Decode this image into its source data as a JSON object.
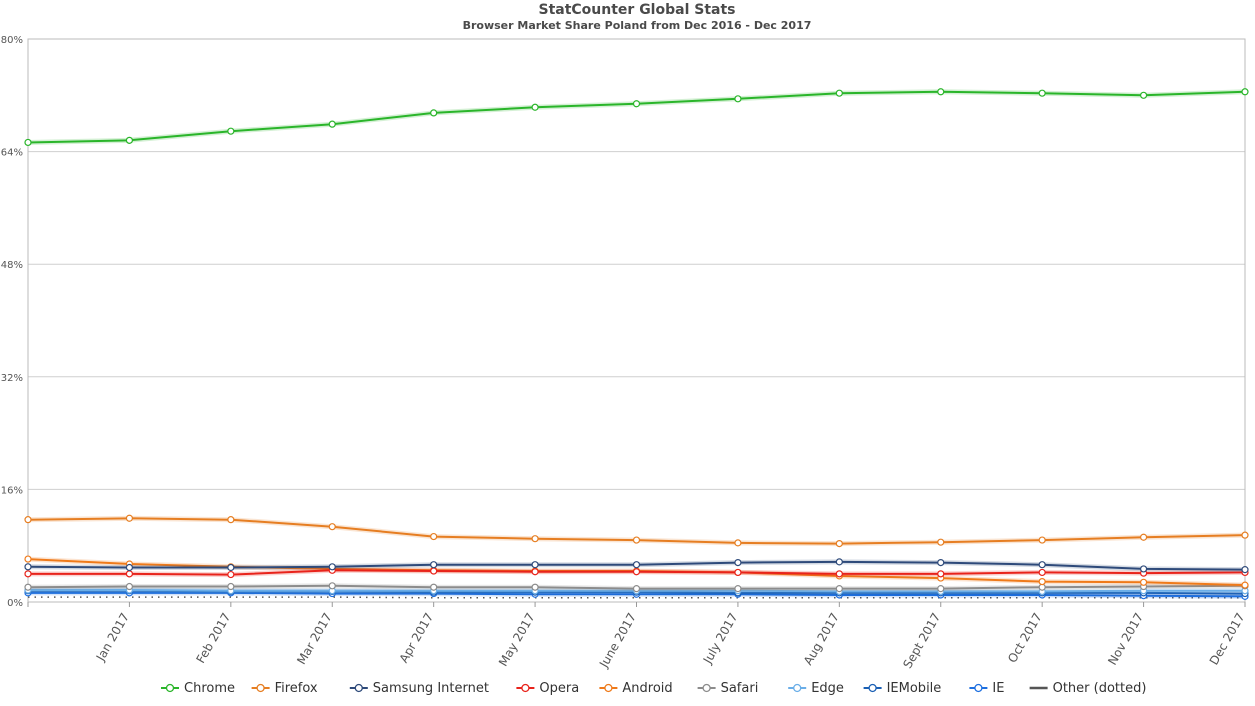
{
  "chart_data": {
    "type": "line",
    "title": "StatCounter Global Stats",
    "subtitle": "Browser Market Share Poland from Dec 2016 - Dec 2017",
    "x": [
      "Dec 2016",
      "Jan 2017",
      "Feb 2017",
      "Mar 2017",
      "Apr 2017",
      "May 2017",
      "June 2017",
      "July 2017",
      "Aug 2017",
      "Sept 2017",
      "Oct 2017",
      "Nov 2017",
      "Dec 2017"
    ],
    "x_tick_labels": [
      "",
      "Jan 2017",
      "Feb 2017",
      "Mar 2017",
      "Apr 2017",
      "May 2017",
      "June 2017",
      "July 2017",
      "Aug 2017",
      "Sept 2017",
      "Oct 2017",
      "Nov 2017",
      "Dec 2017"
    ],
    "y_ticks": [
      0,
      16,
      32,
      48,
      64,
      80
    ],
    "y_tick_labels": [
      "0%",
      "16%",
      "32%",
      "48%",
      "64%",
      "80%"
    ],
    "ylim": [
      0,
      80
    ],
    "grid": true,
    "legend_position": "bottom",
    "series": [
      {
        "name": "Chrome",
        "color": "#2ab52a",
        "markers": true,
        "dotted": false,
        "values": [
          65.3,
          65.6,
          66.9,
          67.9,
          69.5,
          70.3,
          70.8,
          71.5,
          72.3,
          72.5,
          72.3,
          72.0,
          72.5
        ]
      },
      {
        "name": "Firefox",
        "color": "#e67e22",
        "markers": true,
        "dotted": false,
        "values": [
          11.7,
          11.9,
          11.7,
          10.7,
          9.3,
          9.0,
          8.8,
          8.4,
          8.3,
          8.5,
          8.8,
          9.2,
          9.5
        ]
      },
      {
        "name": "Samsung Internet",
        "color": "#2e4a7a",
        "markers": true,
        "dotted": false,
        "values": [
          5.0,
          4.9,
          4.9,
          5.0,
          5.3,
          5.3,
          5.3,
          5.6,
          5.7,
          5.6,
          5.3,
          4.7,
          4.6
        ]
      },
      {
        "name": "Opera",
        "color": "#e8231b",
        "markers": true,
        "dotted": false,
        "values": [
          4.0,
          4.0,
          3.9,
          4.5,
          4.4,
          4.3,
          4.3,
          4.2,
          4.0,
          4.0,
          4.2,
          4.1,
          4.2
        ]
      },
      {
        "name": "Android",
        "color": "#ef7a1a",
        "markers": true,
        "dotted": false,
        "values": [
          6.1,
          5.4,
          5.0,
          4.7,
          4.5,
          4.4,
          4.4,
          4.2,
          3.7,
          3.4,
          2.9,
          2.8,
          2.4
        ]
      },
      {
        "name": "Safari",
        "color": "#8c8c8c",
        "markers": true,
        "dotted": false,
        "values": [
          2.1,
          2.2,
          2.2,
          2.3,
          2.1,
          2.1,
          1.9,
          1.9,
          1.9,
          1.9,
          2.1,
          2.2,
          2.3
        ]
      },
      {
        "name": "Edge",
        "color": "#6aaee8",
        "markers": true,
        "dotted": false,
        "values": [
          1.7,
          1.7,
          1.6,
          1.6,
          1.6,
          1.6,
          1.6,
          1.6,
          1.5,
          1.5,
          1.5,
          1.6,
          1.6
        ]
      },
      {
        "name": "IEMobile",
        "color": "#1a5fb4",
        "markers": true,
        "dotted": false,
        "values": [
          1.6,
          1.6,
          1.5,
          1.5,
          1.4,
          1.4,
          1.4,
          1.3,
          1.3,
          1.3,
          1.3,
          1.3,
          1.2
        ]
      },
      {
        "name": "IE",
        "color": "#1d6fe0",
        "markers": true,
        "dotted": false,
        "values": [
          1.3,
          1.3,
          1.3,
          1.2,
          1.2,
          1.1,
          1.1,
          1.1,
          1.0,
          1.0,
          1.0,
          0.9,
          0.8
        ]
      },
      {
        "name": "Other (dotted)",
        "color": "#555555",
        "markers": false,
        "dotted": true,
        "values": [
          0.7,
          0.7,
          0.7,
          0.7,
          0.6,
          0.6,
          0.6,
          0.6,
          0.6,
          0.6,
          0.6,
          0.6,
          0.6
        ]
      }
    ]
  }
}
